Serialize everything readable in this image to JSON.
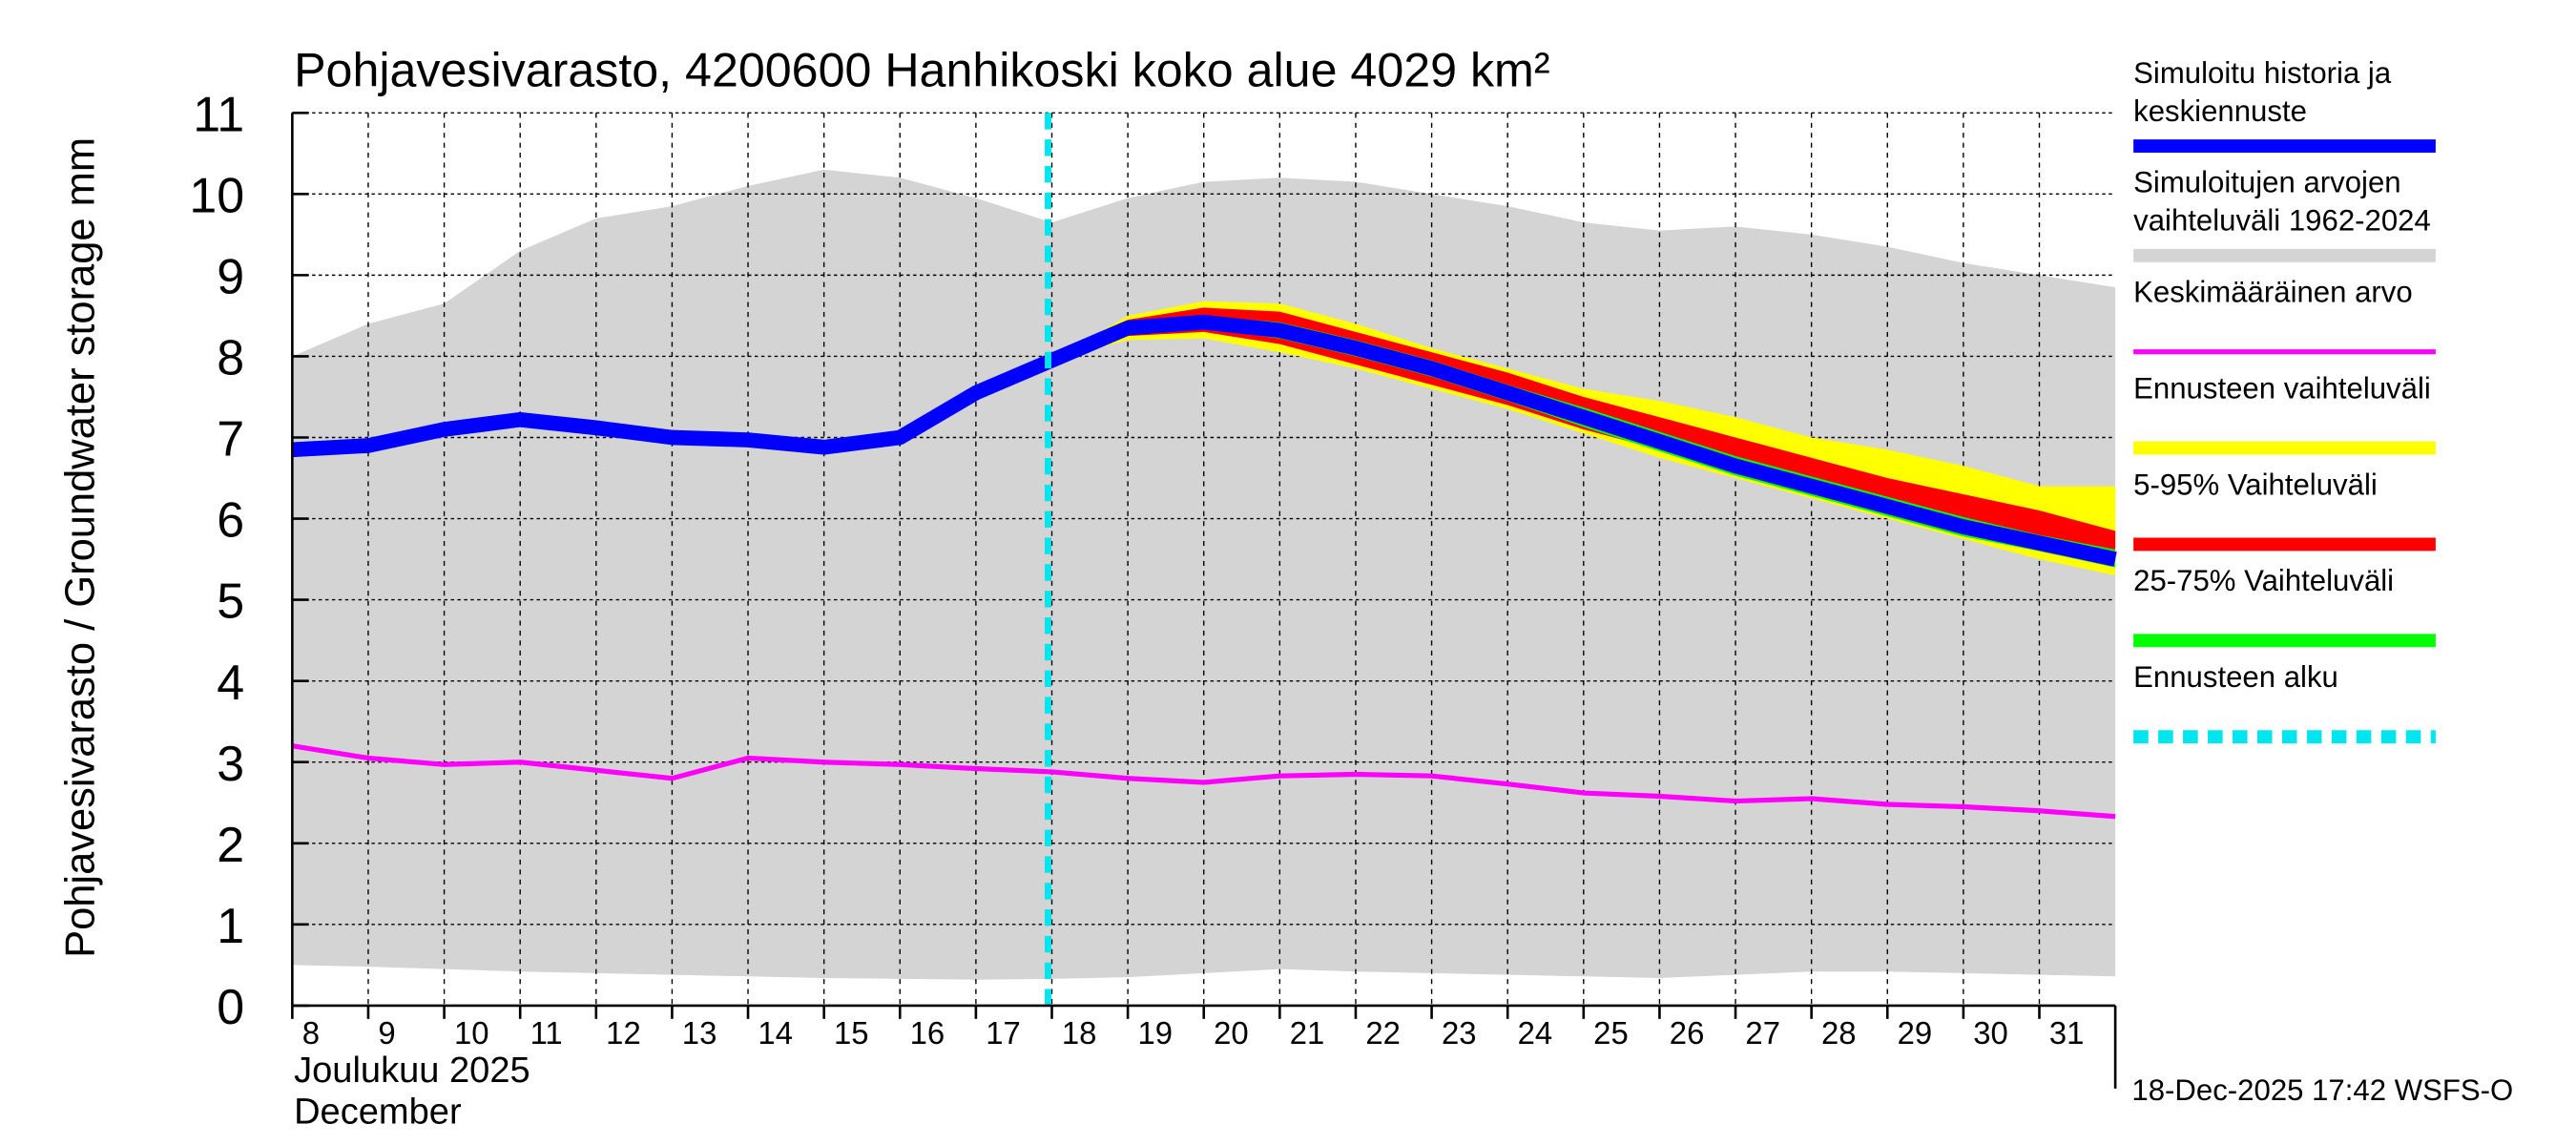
{
  "chart_data": {
    "type": "area",
    "title": "Pohjavesivarasto, 4200600 Hanhikoski koko alue 4029 km²",
    "ylabel": "Pohjavesivarasto / Groundwater storage   mm",
    "xlabel_fi": "Joulukuu  2025",
    "xlabel_en": "December",
    "footer": "18-Dec-2025 17:42 WSFS-O",
    "ylim": [
      0,
      11
    ],
    "yticks": [
      "0",
      "1",
      "2",
      "3",
      "4",
      "5",
      "6",
      "7",
      "8",
      "9",
      "10",
      "11"
    ],
    "x_days": [
      8,
      9,
      10,
      11,
      12,
      13,
      14,
      15,
      16,
      17,
      18,
      19,
      20,
      21,
      22,
      23,
      24,
      25,
      26,
      27,
      28,
      29,
      30,
      31,
      32
    ],
    "xtick_labels": [
      "8",
      "9",
      "10",
      "11",
      "12",
      "13",
      "14",
      "15",
      "16",
      "17",
      "18",
      "19",
      "20",
      "21",
      "22",
      "23",
      "24",
      "25",
      "26",
      "27",
      "28",
      "29",
      "30",
      "31"
    ],
    "forecast_start_day": 17.95,
    "range_upper": [
      8.0,
      8.4,
      8.65,
      9.3,
      9.7,
      9.85,
      10.1,
      10.3,
      10.2,
      9.95,
      9.65,
      9.95,
      10.15,
      10.2,
      10.15,
      10.0,
      9.85,
      9.65,
      9.55,
      9.6,
      9.5,
      9.35,
      9.15,
      9.0,
      8.85
    ],
    "range_lower": [
      0.5,
      0.48,
      0.45,
      0.42,
      0.4,
      0.38,
      0.36,
      0.34,
      0.33,
      0.32,
      0.33,
      0.35,
      0.4,
      0.45,
      0.42,
      0.4,
      0.38,
      0.36,
      0.34,
      0.38,
      0.42,
      0.42,
      0.4,
      0.38,
      0.36
    ],
    "mean": [
      3.2,
      3.05,
      2.97,
      3.0,
      2.9,
      2.8,
      3.05,
      3.0,
      2.97,
      2.92,
      2.88,
      2.8,
      2.75,
      2.83,
      2.85,
      2.83,
      2.73,
      2.62,
      2.58,
      2.52,
      2.55,
      2.48,
      2.45,
      2.4,
      2.33
    ],
    "simulated": [
      6.85,
      6.9,
      7.1,
      7.22,
      7.12,
      7.0,
      6.97,
      6.88,
      7.0,
      7.55,
      7.95,
      8.35,
      8.42,
      8.32,
      8.1,
      7.85,
      7.55,
      7.25,
      6.95,
      6.65,
      6.4,
      6.15,
      5.9,
      5.7,
      5.5
    ],
    "forecast_from_index": 10,
    "fc_upper": [
      7.95,
      8.5,
      8.68,
      8.65,
      8.4,
      8.1,
      7.85,
      7.6,
      7.45,
      7.25,
      7.0,
      6.85,
      6.65,
      6.4,
      6.4
    ],
    "fc_lower": [
      7.95,
      8.2,
      8.22,
      8.05,
      7.85,
      7.6,
      7.35,
      7.05,
      6.75,
      6.5,
      6.25,
      6.0,
      5.75,
      5.5,
      5.3
    ],
    "p95": [
      7.95,
      8.45,
      8.6,
      8.55,
      8.3,
      8.05,
      7.8,
      7.5,
      7.25,
      7.0,
      6.75,
      6.5,
      6.3,
      6.1,
      5.85
    ],
    "p05": [
      7.95,
      8.25,
      8.3,
      8.15,
      7.9,
      7.65,
      7.4,
      7.1,
      6.85,
      6.6,
      6.35,
      6.1,
      5.85,
      5.6,
      5.4
    ],
    "p75": [
      7.95,
      8.4,
      8.5,
      8.42,
      8.2,
      7.95,
      7.65,
      7.37,
      7.07,
      6.77,
      6.52,
      6.27,
      6.02,
      5.8,
      5.62
    ],
    "p25": [
      7.95,
      8.3,
      8.35,
      8.22,
      8.0,
      7.75,
      7.45,
      7.13,
      6.83,
      6.53,
      6.28,
      6.03,
      5.78,
      5.6,
      5.4
    ],
    "legend": [
      {
        "label": "Simuloitu historia ja",
        "label2": "keskiennuste",
        "color": "#0000ff",
        "style": "thick"
      },
      {
        "label": "Simuloitujen arvojen",
        "label2": "vaihteluväli 1962-2024",
        "color": "#d4d4d4",
        "style": "thick"
      },
      {
        "label": "Keskimääräinen arvo",
        "label2": "",
        "color": "#ff00ff",
        "style": "thin"
      },
      {
        "label": "Ennusteen vaihteluväli",
        "label2": "",
        "color": "#ffff00",
        "style": "thick"
      },
      {
        "label": "5-95% Vaihteluväli",
        "label2": "",
        "color": "#ff0000",
        "style": "thick"
      },
      {
        "label": "25-75% Vaihteluväli",
        "label2": "",
        "color": "#00ff00",
        "style": "thick"
      },
      {
        "label": "Ennusteen alku",
        "label2": "",
        "color": "#00e5ee",
        "style": "dashed"
      }
    ],
    "legend_placement": "right"
  }
}
